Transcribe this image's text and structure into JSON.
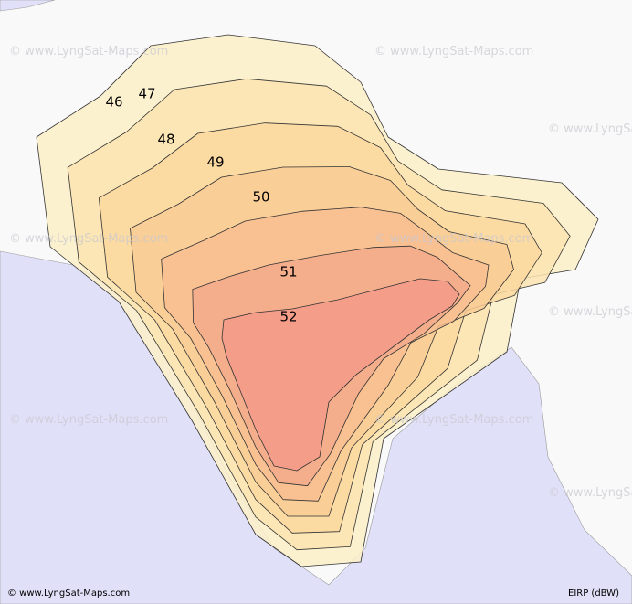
{
  "watermark": "© www.LyngSat-Maps.com",
  "footer": "© www.LyngSat-Maps.com",
  "legend": "EIRP (dBW)",
  "contours": [
    {
      "value": 46,
      "color": "#fdf0c8"
    },
    {
      "value": 47,
      "color": "#fce4b0"
    },
    {
      "value": 48,
      "color": "#fbd8a0"
    },
    {
      "value": 49,
      "color": "#f9cb95"
    },
    {
      "value": 50,
      "color": "#f8bd90"
    },
    {
      "value": 51,
      "color": "#f5aa8a"
    },
    {
      "value": 52,
      "color": "#f39a88"
    }
  ]
}
